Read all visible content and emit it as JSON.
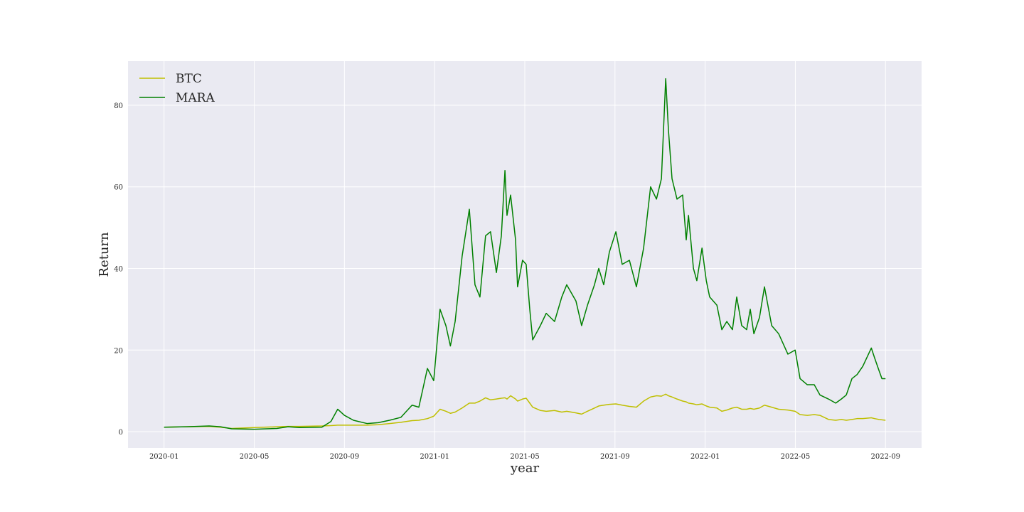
{
  "chart_data": {
    "type": "line",
    "x_label": "year",
    "y_label": "Return",
    "x": [
      0,
      1,
      2,
      2.5,
      3,
      4,
      5,
      5.5,
      6,
      7,
      7.4,
      7.7,
      8,
      8.4,
      9,
      9.5,
      10,
      10.5,
      11,
      11.3,
      11.68,
      11.96,
      12.24,
      12.5,
      12.7,
      12.91,
      13.22,
      13.54,
      13.79,
      14.01,
      14.26,
      14.48,
      14.74,
      14.96,
      15.12,
      15.21,
      15.37,
      15.59,
      15.68,
      15.9,
      16.06,
      16.22,
      16.35,
      16.69,
      16.95,
      17.32,
      17.64,
      17.86,
      18.27,
      18.52,
      18.78,
      19.09,
      19.28,
      19.5,
      19.75,
      20.04,
      20.32,
      20.64,
      20.95,
      21.27,
      21.58,
      21.84,
      22.06,
      22.25,
      22.37,
      22.53,
      22.75,
      23.0,
      23.16,
      23.26,
      23.48,
      23.63,
      23.86,
      24.05,
      24.2,
      24.52,
      24.74,
      24.96,
      25.21,
      25.4,
      25.62,
      25.84,
      26.0,
      26.16,
      26.41,
      26.63,
      26.95,
      27.26,
      27.67,
      27.99,
      28.21,
      28.53,
      28.84,
      29.09,
      29.47,
      29.79,
      30.04,
      30.26,
      30.51,
      30.74,
      30.99,
      31.37,
      31.52,
      31.71,
      31.84,
      32.0
    ],
    "series": [
      {
        "name": "BTC",
        "color": "#bfbf00",
        "values": [
          1.1,
          1.2,
          1.3,
          1.1,
          0.8,
          1.0,
          1.2,
          1.3,
          1.3,
          1.4,
          1.5,
          1.6,
          1.6,
          1.6,
          1.6,
          1.7,
          2.0,
          2.3,
          2.7,
          2.8,
          3.2,
          3.8,
          5.5,
          5.0,
          4.5,
          4.8,
          5.8,
          7.0,
          7.0,
          7.5,
          8.3,
          7.8,
          8.0,
          8.2,
          8.3,
          8.0,
          8.8,
          8.0,
          7.5,
          8.0,
          8.2,
          7.0,
          6.0,
          5.2,
          5.0,
          5.2,
          4.8,
          5.0,
          4.6,
          4.3,
          5.0,
          5.8,
          6.3,
          6.5,
          6.7,
          6.8,
          6.5,
          6.2,
          6.0,
          7.5,
          8.5,
          8.8,
          8.7,
          9.2,
          8.8,
          8.5,
          8.0,
          7.5,
          7.3,
          7.0,
          6.8,
          6.6,
          6.8,
          6.3,
          6.0,
          5.8,
          5.0,
          5.3,
          5.8,
          6.0,
          5.5,
          5.5,
          5.7,
          5.5,
          5.8,
          6.5,
          6.0,
          5.5,
          5.3,
          5.0,
          4.2,
          4.0,
          4.2,
          4.0,
          3.0,
          2.8,
          3.0,
          2.8,
          3.0,
          3.2,
          3.2,
          3.4,
          3.2,
          3.0,
          2.9,
          2.8
        ]
      },
      {
        "name": "MARA",
        "color": "#008000",
        "values": [
          1.1,
          1.2,
          1.4,
          1.2,
          0.7,
          0.6,
          0.8,
          1.2,
          1.0,
          1.1,
          2.5,
          5.5,
          4.0,
          2.8,
          2.0,
          2.2,
          2.8,
          3.5,
          6.5,
          6.0,
          15.5,
          12.5,
          30,
          26,
          21,
          27,
          43,
          54.5,
          36,
          33,
          48,
          49,
          39,
          48,
          64,
          53,
          58,
          47,
          35.5,
          42,
          41,
          30,
          22.5,
          26,
          29,
          27,
          33,
          36,
          32,
          26,
          31,
          36,
          40,
          36,
          44,
          49,
          41,
          42,
          35.5,
          45,
          60,
          57,
          62,
          86.5,
          74,
          62,
          57,
          58,
          47,
          53,
          40,
          37,
          45,
          37,
          33,
          31,
          25,
          27,
          25,
          33,
          26,
          25,
          30,
          24,
          28,
          35.5,
          26,
          24,
          19,
          20,
          13,
          11.5,
          11.5,
          9,
          8,
          7,
          8,
          9,
          13,
          14,
          16,
          20.5,
          18,
          15,
          13,
          13
        ]
      }
    ],
    "xlim": [
      -1.6,
      33.6
    ],
    "xticks": [
      {
        "value": 0,
        "label": "2020-01"
      },
      {
        "value": 4,
        "label": "2020-05"
      },
      {
        "value": 8,
        "label": "2020-09"
      },
      {
        "value": 12,
        "label": "2021-01"
      },
      {
        "value": 16,
        "label": "2021-05"
      },
      {
        "value": 20,
        "label": "2021-09"
      },
      {
        "value": 24,
        "label": "2022-01"
      },
      {
        "value": 28,
        "label": "2022-05"
      },
      {
        "value": 32,
        "label": "2022-09"
      }
    ],
    "ylim": [
      -4,
      90.8
    ],
    "yticks": [
      0,
      20,
      40,
      60,
      80
    ],
    "grid": true,
    "legend": "upper-left"
  }
}
